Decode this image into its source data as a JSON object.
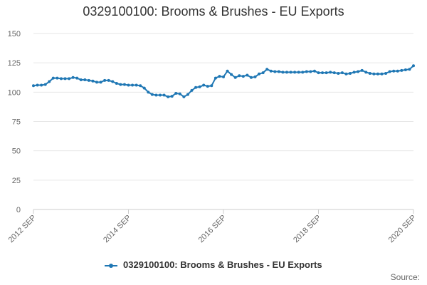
{
  "chart_data": {
    "type": "line",
    "title": "0329100100: Brooms & Brushes - EU Exports",
    "xlabel": "",
    "ylabel": "",
    "ylim": [
      0,
      150
    ],
    "yticks": [
      0,
      25,
      50,
      75,
      100,
      125,
      150
    ],
    "x_start": "2012-09",
    "x_end": "2020-09",
    "xtick_labels": [
      "2012 SEP",
      "2014 SEP",
      "2016 SEP",
      "2018 SEP",
      "2020 SEP"
    ],
    "grid": "horizontal",
    "legend_position": "bottom-center",
    "color": "#1f77b4",
    "series": [
      {
        "name": "0329100100: Brooms & Brushes - EU Exports",
        "values": [
          105.5,
          106,
          106,
          106.5,
          109,
          112,
          112,
          111.5,
          111.5,
          111.5,
          112.5,
          112,
          110.5,
          110.5,
          110,
          109.5,
          108.5,
          108.5,
          110,
          110,
          109,
          107.5,
          106.5,
          106.5,
          106,
          106,
          106,
          105.5,
          103.5,
          100,
          98,
          97.5,
          97.5,
          97.5,
          96,
          96.5,
          99,
          98.5,
          96,
          98,
          101.5,
          104,
          104.5,
          106,
          105,
          105.5,
          112,
          113.5,
          113,
          118,
          115,
          112.5,
          114,
          113.5,
          114.5,
          112.5,
          113,
          115.5,
          116.5,
          119.5,
          118,
          117.5,
          117.5,
          117,
          117,
          117,
          117,
          117,
          117,
          117.5,
          117.5,
          118,
          116.5,
          116.5,
          116.5,
          117,
          116.5,
          116,
          116.5,
          115.5,
          116,
          117,
          117.5,
          118.5,
          117,
          116,
          115.5,
          115.5,
          115.5,
          116,
          117.5,
          118,
          118,
          118.5,
          119,
          119.5,
          122.5
        ]
      }
    ]
  },
  "legend": {
    "label": "0329100100: Brooms & Brushes - EU Exports"
  },
  "footer": {
    "source": "Source:"
  }
}
